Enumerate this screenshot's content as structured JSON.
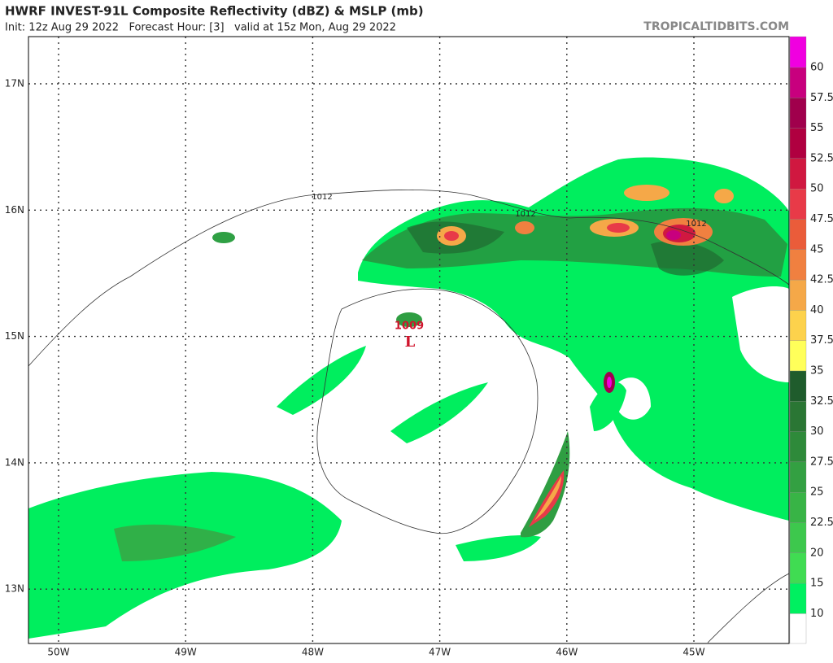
{
  "header": {
    "title": "HWRF INVEST-91L Composite Reflectivity (dBZ) & MSLP (mb)",
    "subtitle": "Init: 12z Aug 29 2022   Forecast Hour: [3]   valid at 15z Mon, Aug 29 2022",
    "source": "TROPICALTIDBITS.COM"
  },
  "map": {
    "lat_labels": [
      "17N",
      "16N",
      "15N",
      "14N",
      "13N"
    ],
    "lon_labels": [
      "50W",
      "49W",
      "48W",
      "47W",
      "46W",
      "45W"
    ],
    "contour_labels": [
      "1012",
      "1012",
      "1012"
    ],
    "low": {
      "pressure": "1009",
      "symbol": "L"
    }
  },
  "colorbar": {
    "labels": [
      "60",
      "57.5",
      "55",
      "52.5",
      "50",
      "47.5",
      "45",
      "42.5",
      "40",
      "37.5",
      "35",
      "32.5",
      "30",
      "27.5",
      "25",
      "22.5",
      "20",
      "15",
      "10"
    ],
    "colors": [
      "#f000e0",
      "#c8007e",
      "#a0004c",
      "#b00040",
      "#d01840",
      "#e83a48",
      "#ea5c3a",
      "#f08040",
      "#f5a848",
      "#fdd24c",
      "#ffff5a",
      "#1f5c2c",
      "#2a7634",
      "#2e8a3a",
      "#33a042",
      "#38b446",
      "#3dc84d",
      "#40dc52",
      "#00f060",
      "#ffffff"
    ]
  }
}
